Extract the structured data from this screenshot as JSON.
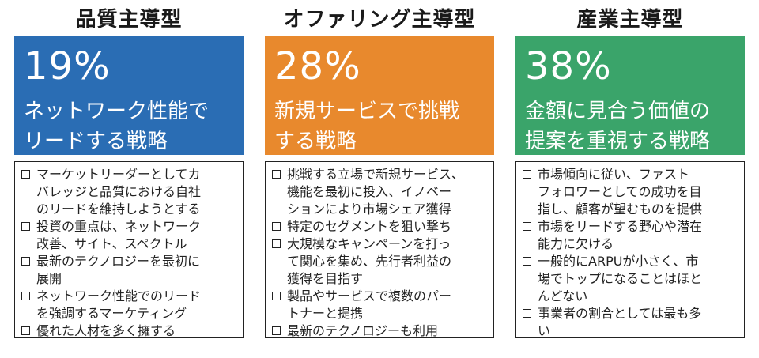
{
  "columns": [
    {
      "title": "品質主導型",
      "percent": "19%",
      "description": "ネットワーク性能で\nリードする戦略",
      "color": "#2a6db4",
      "items": [
        "マーケットリーダーとしてカ\nバレッジと品質における自社\nのリードを維持しようとする",
        "投資の重点は、ネットワーク\n改善、サイト、スペクトル",
        "最新のテクノロジーを最初に\n展開",
        "ネットワーク性能でのリード\nを強調するマーケティング",
        "優れた人材を多く擁する"
      ]
    },
    {
      "title": "オファリング主導型",
      "percent": "28%",
      "description": "新規サービスで挑戦\nする戦略",
      "color": "#e8892d",
      "items": [
        "挑戦する立場で新規サービス、\n機能を最初に投入、イノベー\nションにより市場シェア獲得",
        "特定のセグメントを狙い撃ち",
        "大規模なキャンペーンを打っ\nて関心を集め、先行者利益の\n獲得を目指す",
        "製品やサービスで複数のパー\nトナーと提携",
        "最新のテクノロジーも利用"
      ]
    },
    {
      "title": "産業主導型",
      "percent": "38%",
      "description": "金額に見合う価値の\n提案を重視する戦略",
      "color": "#3aa46a",
      "items": [
        "市場傾向に従い、ファスト\nフォロワーとしての成功を目\n指し、顧客が望むものを提供",
        "市場をリードする野心や潜在\n能力に欠ける",
        "一般的にARPUが小さく、市\n場でトップになることはほと\nんどない",
        "事業者の割合としては最も多\nい"
      ]
    }
  ]
}
